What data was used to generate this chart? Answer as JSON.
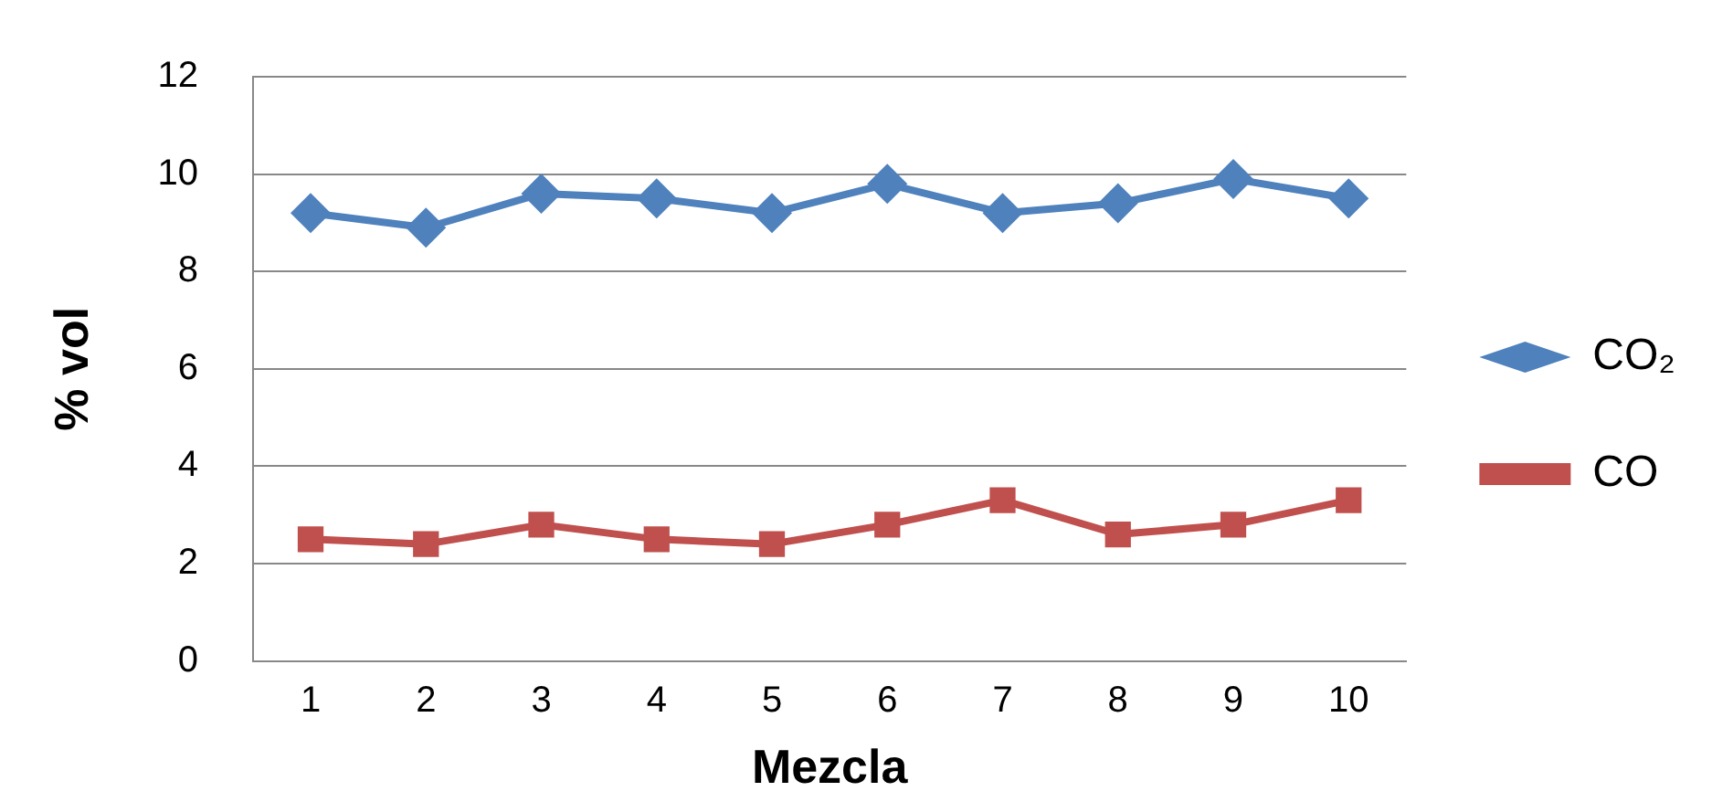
{
  "chart_data": {
    "type": "line",
    "xlabel": "Mezcla",
    "ylabel": "% vol",
    "categories": [
      "1",
      "2",
      "3",
      "4",
      "5",
      "6",
      "7",
      "8",
      "9",
      "10"
    ],
    "series": [
      {
        "name": "CO₂",
        "color": "#4f81bd",
        "marker": "diamond",
        "values": [
          9.2,
          8.9,
          9.6,
          9.5,
          9.2,
          9.8,
          9.2,
          9.4,
          9.9,
          9.5
        ]
      },
      {
        "name": "CO",
        "color": "#c0504d",
        "marker": "square",
        "values": [
          2.5,
          2.4,
          2.8,
          2.5,
          2.4,
          2.8,
          3.3,
          2.6,
          2.8,
          3.3
        ]
      }
    ],
    "ylim": [
      0,
      12
    ],
    "yticks": [
      0,
      2,
      4,
      6,
      8,
      10,
      12
    ],
    "grid": "y",
    "legend": "right"
  }
}
